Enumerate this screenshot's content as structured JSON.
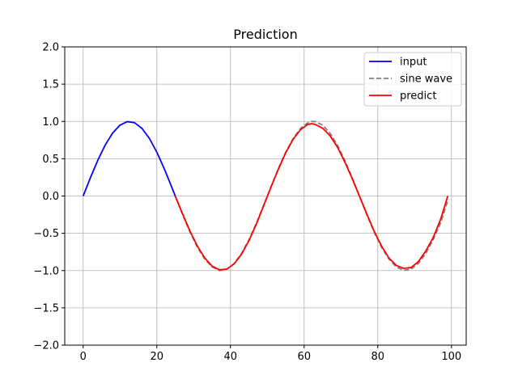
{
  "chart_data": {
    "type": "line",
    "title": "Prediction",
    "xlabel": "",
    "ylabel": "",
    "xlim": [
      -5,
      104
    ],
    "ylim": [
      -2.0,
      2.0
    ],
    "xticks": [
      0,
      20,
      40,
      60,
      80,
      100
    ],
    "xtick_labels": [
      "0",
      "20",
      "40",
      "60",
      "80",
      "100"
    ],
    "yticks": [
      -2.0,
      -1.5,
      -1.0,
      -0.5,
      0.0,
      0.5,
      1.0,
      1.5,
      2.0
    ],
    "ytick_labels": [
      "−2.0",
      "−1.5",
      "−1.0",
      "−0.5",
      "0.0",
      "0.5",
      "1.0",
      "1.5",
      "2.0"
    ],
    "grid": true,
    "legend_position": "top-right",
    "series": [
      {
        "name": "input",
        "color": "#0000ff",
        "style": "solid",
        "x": [
          0,
          2,
          4,
          6,
          8,
          10,
          12,
          14,
          16,
          18,
          20,
          22,
          24,
          25
        ],
        "y": [
          0.0,
          0.249,
          0.482,
          0.685,
          0.844,
          0.951,
          0.998,
          0.982,
          0.905,
          0.771,
          0.588,
          0.368,
          0.125,
          0.0
        ]
      },
      {
        "name": "sine wave",
        "color": "#808080",
        "style": "dashed",
        "x": [
          25,
          27,
          29,
          31,
          33,
          35,
          37,
          39,
          41,
          43,
          45,
          47,
          49,
          51,
          53,
          55,
          57,
          59,
          61,
          62,
          63,
          65,
          67,
          69,
          71,
          73,
          75,
          77,
          79,
          81,
          83,
          85,
          87,
          89,
          91,
          93,
          95,
          97,
          99
        ],
        "y": [
          0.0,
          -0.249,
          -0.482,
          -0.685,
          -0.844,
          -0.951,
          -0.998,
          -0.982,
          -0.905,
          -0.771,
          -0.588,
          -0.368,
          -0.125,
          0.125,
          0.368,
          0.588,
          0.771,
          0.905,
          0.982,
          1.0,
          0.998,
          0.951,
          0.844,
          0.685,
          0.482,
          0.249,
          0.0,
          -0.249,
          -0.482,
          -0.685,
          -0.844,
          -0.951,
          -0.998,
          -0.982,
          -0.905,
          -0.771,
          -0.588,
          -0.368,
          -0.063
        ]
      },
      {
        "name": "predict",
        "color": "#ff0000",
        "style": "solid",
        "x": [
          25,
          27,
          29,
          31,
          33,
          35,
          37,
          39,
          41,
          43,
          45,
          47,
          49,
          51,
          53,
          55,
          57,
          59,
          61,
          62,
          63,
          65,
          67,
          69,
          71,
          73,
          75,
          77,
          79,
          81,
          83,
          85,
          87,
          89,
          91,
          93,
          95,
          97,
          99
        ],
        "y": [
          0.0,
          -0.24,
          -0.47,
          -0.67,
          -0.83,
          -0.94,
          -0.99,
          -0.98,
          -0.91,
          -0.78,
          -0.6,
          -0.38,
          -0.13,
          0.12,
          0.36,
          0.58,
          0.76,
          0.89,
          0.96,
          0.97,
          0.96,
          0.91,
          0.81,
          0.66,
          0.46,
          0.24,
          0.0,
          -0.24,
          -0.47,
          -0.67,
          -0.83,
          -0.93,
          -0.97,
          -0.96,
          -0.88,
          -0.74,
          -0.56,
          -0.32,
          0.0
        ]
      }
    ]
  }
}
